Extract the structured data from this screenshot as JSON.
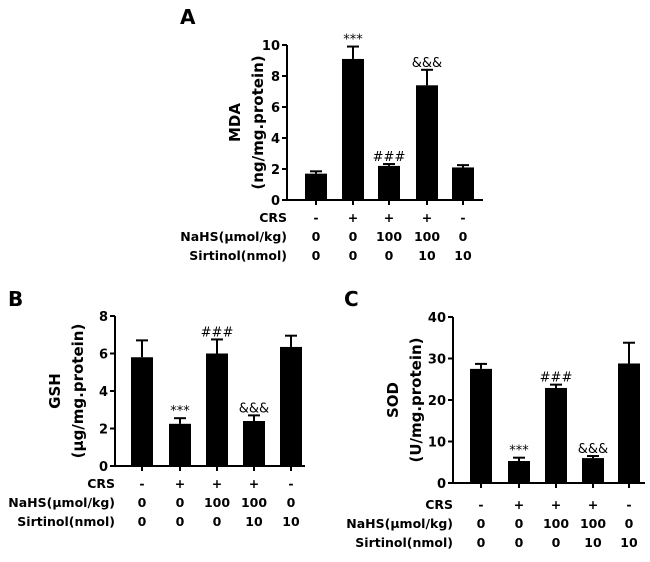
{
  "chart_data": [
    {
      "type": "bar",
      "panel_label": "A",
      "ylabel": "MDA",
      "ylabel_unit": "(ng/mg.protein)",
      "ylim": [
        0,
        10
      ],
      "yticks": [
        0,
        2,
        4,
        6,
        8,
        10
      ],
      "row_labels": [
        "CRS",
        "NaHS(μmol/kg)",
        "Sirtinol(nmol)"
      ],
      "groups": [
        {
          "CRS": "-",
          "NaHS": "0",
          "Sirtinol": "0",
          "value": 1.7,
          "error": 0.15,
          "sig": ""
        },
        {
          "CRS": "+",
          "NaHS": "0",
          "Sirtinol": "0",
          "value": 9.1,
          "error": 0.8,
          "sig": "***"
        },
        {
          "CRS": "+",
          "NaHS": "100",
          "Sirtinol": "0",
          "value": 2.2,
          "error": 0.12,
          "sig": "###"
        },
        {
          "CRS": "+",
          "NaHS": "100",
          "Sirtinol": "10",
          "value": 7.4,
          "error": 1.0,
          "sig": "&&&"
        },
        {
          "CRS": "-",
          "NaHS": "0",
          "Sirtinol": "10",
          "value": 2.1,
          "error": 0.15,
          "sig": ""
        }
      ]
    },
    {
      "type": "bar",
      "panel_label": "B",
      "ylabel": "GSH",
      "ylabel_unit": "(μg/mg.protein)",
      "ylim": [
        0,
        8
      ],
      "yticks": [
        0,
        2,
        4,
        6,
        8
      ],
      "row_labels": [
        "CRS",
        "NaHS(μmol/kg)",
        "Sirtinol(nmol)"
      ],
      "groups": [
        {
          "CRS": "-",
          "NaHS": "0",
          "Sirtinol": "0",
          "value": 5.8,
          "error": 0.9,
          "sig": ""
        },
        {
          "CRS": "+",
          "NaHS": "0",
          "Sirtinol": "0",
          "value": 2.25,
          "error": 0.3,
          "sig": "***"
        },
        {
          "CRS": "+",
          "NaHS": "100",
          "Sirtinol": "0",
          "value": 6.0,
          "error": 0.75,
          "sig": "###"
        },
        {
          "CRS": "+",
          "NaHS": "100",
          "Sirtinol": "10",
          "value": 2.4,
          "error": 0.3,
          "sig": "&&&"
        },
        {
          "CRS": "-",
          "NaHS": "0",
          "Sirtinol": "10",
          "value": 6.35,
          "error": 0.6,
          "sig": ""
        }
      ]
    },
    {
      "type": "bar",
      "panel_label": "C",
      "ylabel": "SOD",
      "ylabel_unit": "(U/mg.protein)",
      "ylim": [
        0,
        40
      ],
      "yticks": [
        0,
        10,
        20,
        30,
        40
      ],
      "row_labels": [
        "CRS",
        "NaHS(μmol/kg)",
        "Sirtinol(nmol)"
      ],
      "groups": [
        {
          "CRS": "-",
          "NaHS": "0",
          "Sirtinol": "0",
          "value": 27.5,
          "error": 1.2,
          "sig": ""
        },
        {
          "CRS": "+",
          "NaHS": "0",
          "Sirtinol": "0",
          "value": 5.3,
          "error": 0.8,
          "sig": "***"
        },
        {
          "CRS": "+",
          "NaHS": "100",
          "Sirtinol": "0",
          "value": 22.9,
          "error": 0.8,
          "sig": "###"
        },
        {
          "CRS": "+",
          "NaHS": "100",
          "Sirtinol": "10",
          "value": 6.0,
          "error": 0.5,
          "sig": "&&&"
        },
        {
          "CRS": "-",
          "NaHS": "0",
          "Sirtinol": "10",
          "value": 28.8,
          "error": 5.0,
          "sig": ""
        }
      ]
    }
  ],
  "colors": {
    "bar": "#000000",
    "axis": "#000000"
  }
}
